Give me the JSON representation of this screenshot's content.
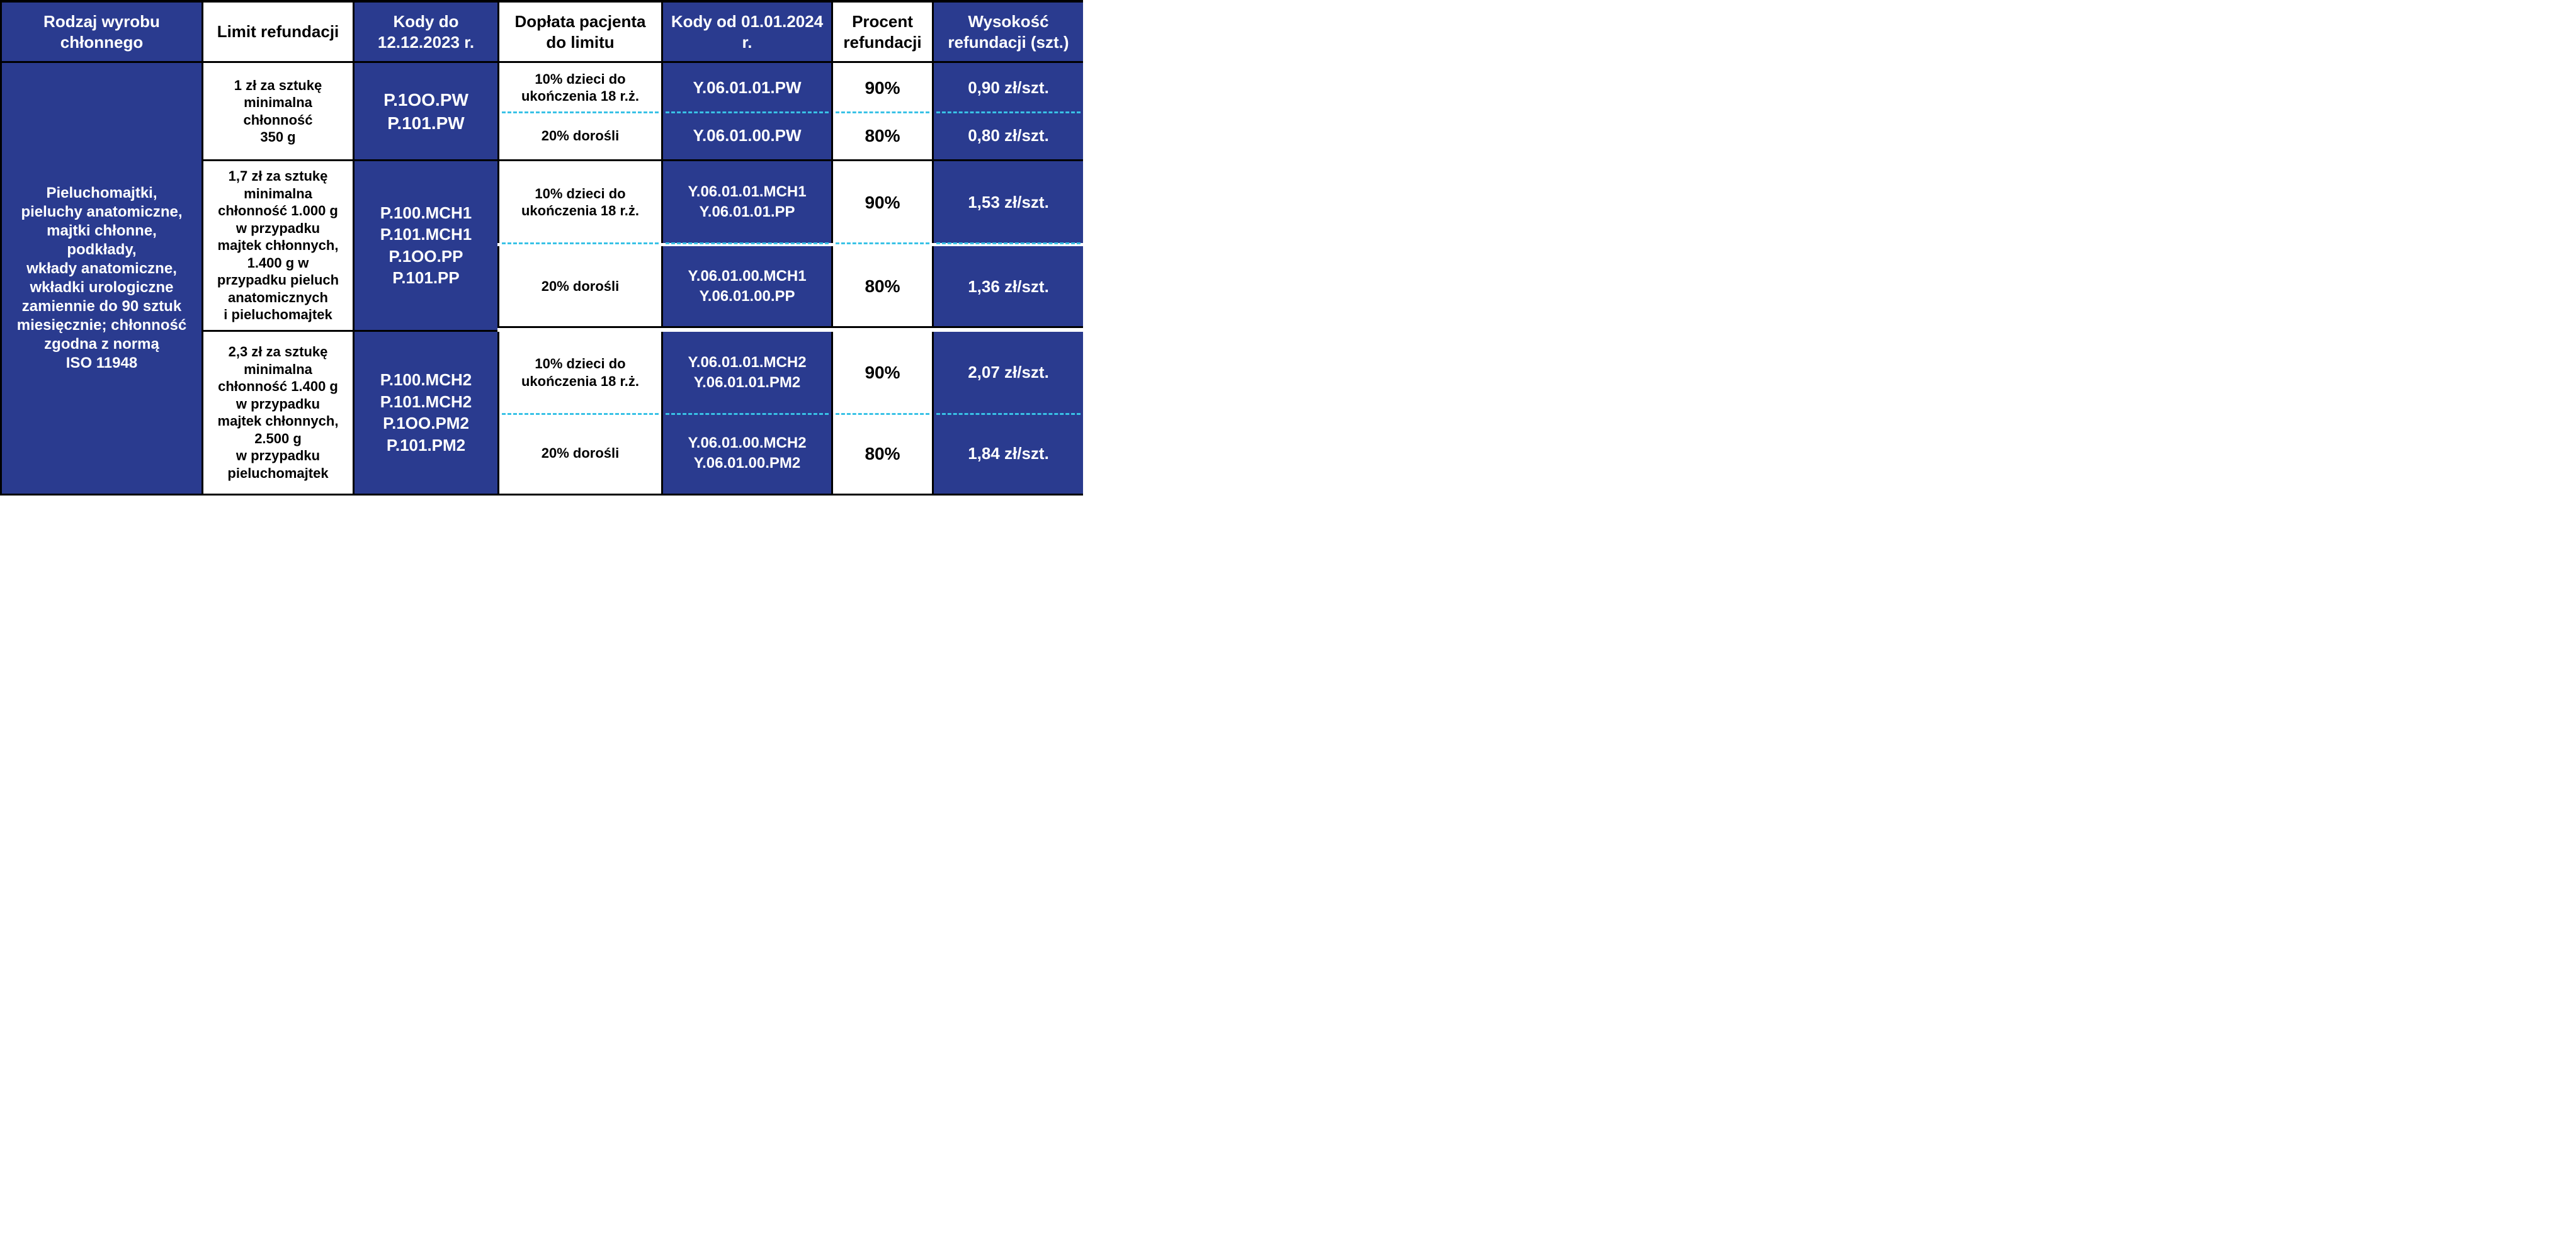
{
  "colors": {
    "dark_bg": "#2a3b8f",
    "dark_text": "#ffffff",
    "light_bg": "#ffffff",
    "light_text": "#000000",
    "border": "#000000",
    "dashed": "#39c2e6"
  },
  "columns": [
    "Rodzaj wyrobu chłonnego",
    "Limit refundacji",
    "Kody do 12.12.2023 r.",
    "Dopłata pacjenta do limitu",
    "Kody od 01.01.2024 r.",
    "Procent refundacji",
    "Wysokość refundacji (szt.)"
  ],
  "rowhead": "Pieluchomajtki,\npieluchy anatomiczne,\nmajtki chłonne,\npodkłady,\nwkłady anatomiczne,\nwkładki urologiczne\nzamiennie do 90 sztuk\nmiesięcznie; chłonność\nzgodna z normą\nISO 11948",
  "groups": [
    {
      "limit": "1 zł za sztukę\nminimalna\nchłonność\n350 g",
      "codes_old": [
        "P.1OO.PW",
        "P.101.PW"
      ],
      "sub": [
        {
          "doplata": "10% dzieci do\nukończenia 18 r.ż.",
          "codes_new": [
            "Y.06.01.01.PW"
          ],
          "percent": "90%",
          "amount": "0,90 zł/szt."
        },
        {
          "doplata": "20% dorośli",
          "codes_new": [
            "Y.06.01.00.PW"
          ],
          "percent": "80%",
          "amount": "0,80 zł/szt."
        }
      ]
    },
    {
      "limit": "1,7 zł za sztukę\nminimalna\nchłonność 1.000 g\nw przypadku\nmajtek chłonnych,\n1.400 g w\nprzypadku pieluch\nanatomicznych\ni pieluchomajtek",
      "codes_old": [
        "P.100.MCH1",
        "P.101.MCH1",
        "P.1OO.PP",
        "P.101.PP"
      ],
      "sub": [
        {
          "doplata": "10% dzieci do\nukończenia 18 r.ż.",
          "codes_new": [
            "Y.06.01.01.MCH1",
            "Y.06.01.01.PP"
          ],
          "percent": "90%",
          "amount": "1,53 zł/szt."
        },
        {
          "doplata": "20% dorośli",
          "codes_new": [
            "Y.06.01.00.MCH1",
            "Y.06.01.00.PP"
          ],
          "percent": "80%",
          "amount": "1,36 zł/szt."
        }
      ]
    },
    {
      "limit": "2,3 zł za sztukę\nminimalna\nchłonność 1.400 g\nw przypadku\nmajtek chłonnych,\n2.500 g\nw przypadku\npieluchomajtek",
      "codes_old": [
        "P.100.MCH2",
        "P.101.MCH2",
        "P.1OO.PM2",
        "P.101.PM2"
      ],
      "sub": [
        {
          "doplata": "10% dzieci do\nukończenia 18 r.ż.",
          "codes_new": [
            "Y.06.01.01.MCH2",
            "Y.06.01.01.PM2"
          ],
          "percent": "90%",
          "amount": "2,07 zł/szt."
        },
        {
          "doplata": "20% dorośli",
          "codes_new": [
            "Y.06.01.00.MCH2",
            "Y.06.01.00.PM2"
          ],
          "percent": "80%",
          "amount": "1,84 zł/szt."
        }
      ]
    }
  ]
}
